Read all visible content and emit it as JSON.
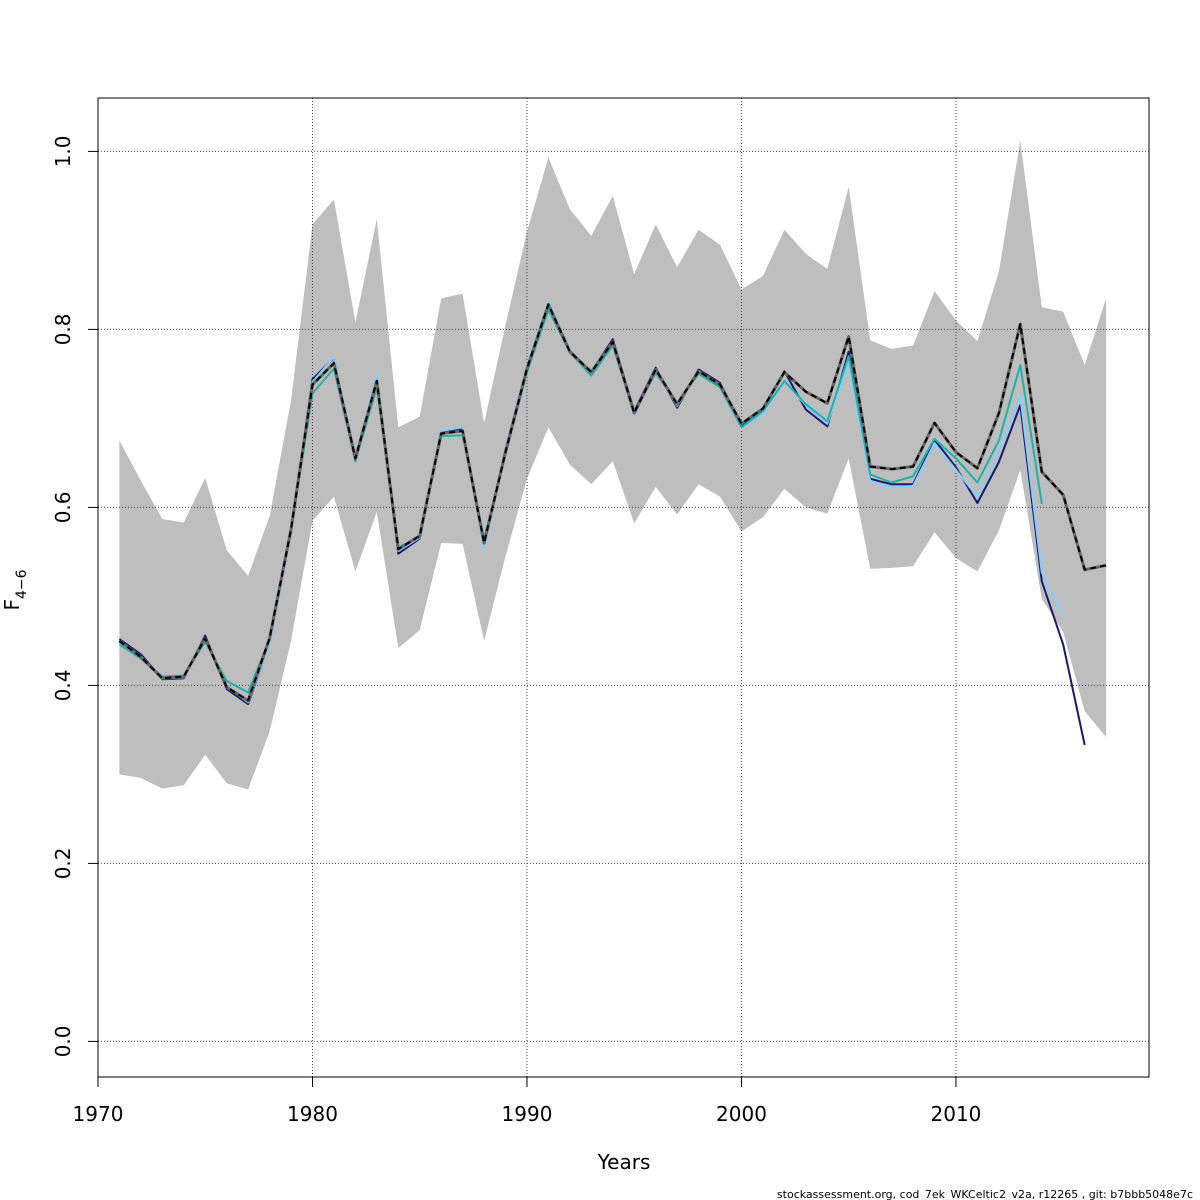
{
  "chart_data": {
    "type": "line",
    "xlabel": "Years",
    "ylabel": {
      "main": "F",
      "sub": "4−6"
    },
    "xlim": [
      1970,
      2019
    ],
    "ylim": [
      -0.04,
      1.06
    ],
    "x_ticks": [
      1970,
      1980,
      1990,
      2000,
      2010
    ],
    "y_ticks": [
      0.0,
      0.2,
      0.4,
      0.6,
      0.8,
      1.0
    ],
    "y_tick_labels": [
      "0.0",
      "0.2",
      "0.4",
      "0.6",
      "0.8",
      "1.0"
    ],
    "grid": true,
    "footer": "stockassessment.org, cod_7ek_WKCeltic2_v2a, r12265 , git: b7bbb5048e7c",
    "band": {
      "color": "#bebebe",
      "x": [
        1971,
        1972,
        1973,
        1974,
        1975,
        1976,
        1977,
        1978,
        1979,
        1980,
        1981,
        1982,
        1983,
        1984,
        1985,
        1986,
        1987,
        1988,
        1989,
        1990,
        1991,
        1992,
        1993,
        1994,
        1995,
        1996,
        1997,
        1998,
        1999,
        2000,
        2001,
        2002,
        2003,
        2004,
        2005,
        2006,
        2007,
        2008,
        2009,
        2010,
        2011,
        2012,
        2013,
        2014,
        2015,
        2016,
        2017
      ],
      "upper": [
        0.675,
        0.63,
        0.587,
        0.583,
        0.633,
        0.552,
        0.523,
        0.59,
        0.72,
        0.918,
        0.946,
        0.808,
        0.924,
        0.69,
        0.702,
        0.835,
        0.84,
        0.695,
        0.805,
        0.91,
        0.993,
        0.935,
        0.905,
        0.95,
        0.862,
        0.918,
        0.87,
        0.912,
        0.895,
        0.845,
        0.86,
        0.912,
        0.885,
        0.868,
        0.96,
        0.788,
        0.778,
        0.782,
        0.843,
        0.81,
        0.787,
        0.865,
        1.012,
        0.825,
        0.82,
        0.76,
        0.835
      ],
      "lower": [
        0.3,
        0.296,
        0.284,
        0.288,
        0.322,
        0.29,
        0.283,
        0.348,
        0.45,
        0.585,
        0.612,
        0.528,
        0.595,
        0.442,
        0.462,
        0.56,
        0.559,
        0.45,
        0.545,
        0.632,
        0.69,
        0.648,
        0.626,
        0.652,
        0.582,
        0.623,
        0.592,
        0.626,
        0.612,
        0.573,
        0.589,
        0.621,
        0.6,
        0.593,
        0.655,
        0.531,
        0.532,
        0.534,
        0.572,
        0.543,
        0.528,
        0.574,
        0.642,
        0.497,
        0.46,
        0.371,
        0.342
      ]
    },
    "series": [
      {
        "color": "#000000",
        "dashed": true,
        "x": [
          1971,
          1972,
          1973,
          1974,
          1975,
          1976,
          1977,
          1978,
          1979,
          1980,
          1981,
          1982,
          1983,
          1984,
          1985,
          1986,
          1987,
          1988,
          1989,
          1990,
          1991,
          1992,
          1993,
          1994,
          1995,
          1996,
          1997,
          1998,
          1999,
          2000,
          2001,
          2002,
          2003,
          2004,
          2005,
          2006,
          2007,
          2008,
          2009,
          2010,
          2011,
          2012,
          2013,
          2014,
          2015,
          2016,
          2017
        ],
        "values": [
          0.45,
          0.432,
          0.408,
          0.41,
          0.453,
          0.398,
          0.383,
          0.453,
          0.575,
          0.738,
          0.762,
          0.655,
          0.742,
          0.553,
          0.568,
          0.683,
          0.686,
          0.56,
          0.662,
          0.756,
          0.828,
          0.775,
          0.752,
          0.786,
          0.706,
          0.755,
          0.716,
          0.753,
          0.738,
          0.694,
          0.711,
          0.752,
          0.73,
          0.717,
          0.792,
          0.646,
          0.643,
          0.646,
          0.695,
          0.662,
          0.644,
          0.706,
          0.806,
          0.64,
          0.614,
          0.53,
          0.535
        ]
      },
      {
        "color": "#191970",
        "dashed": false,
        "x": [
          1971,
          1972,
          1973,
          1974,
          1975,
          1976,
          1977,
          1978,
          1979,
          1980,
          1981,
          1982,
          1983,
          1984,
          1985,
          1986,
          1987,
          1988,
          1989,
          1990,
          1991,
          1992,
          1993,
          1994,
          1995,
          1996,
          1997,
          1998,
          1999,
          2000,
          2001,
          2002,
          2003,
          2004,
          2005,
          2006,
          2007,
          2008,
          2009,
          2010,
          2011,
          2012,
          2013,
          2014,
          2015,
          2016
        ],
        "values": [
          0.452,
          0.435,
          0.407,
          0.408,
          0.456,
          0.396,
          0.379,
          0.449,
          0.572,
          0.744,
          0.768,
          0.652,
          0.748,
          0.548,
          0.565,
          0.685,
          0.688,
          0.557,
          0.665,
          0.757,
          0.83,
          0.776,
          0.752,
          0.789,
          0.708,
          0.757,
          0.712,
          0.755,
          0.74,
          0.692,
          0.709,
          0.753,
          0.71,
          0.691,
          0.775,
          0.632,
          0.626,
          0.626,
          0.676,
          0.645,
          0.605,
          0.651,
          0.715,
          0.517,
          0.446,
          0.333
        ]
      },
      {
        "color": "#87cefa",
        "dashed": false,
        "x": [
          1971,
          1972,
          1973,
          1974,
          1975,
          1976,
          1977,
          1978,
          1979,
          1980,
          1981,
          1982,
          1983,
          1984,
          1985,
          1986,
          1987,
          1988,
          1989,
          1990,
          1991,
          1992,
          1993,
          1994,
          1995,
          1996,
          1997,
          1998,
          1999,
          2000,
          2001,
          2002,
          2003,
          2004,
          2005,
          2006,
          2007,
          2008,
          2009,
          2010,
          2011,
          2012,
          2013,
          2014,
          2015
        ],
        "values": [
          0.449,
          0.431,
          0.408,
          0.409,
          0.452,
          0.399,
          0.381,
          0.448,
          0.571,
          0.741,
          0.769,
          0.654,
          0.75,
          0.551,
          0.566,
          0.686,
          0.69,
          0.553,
          0.664,
          0.758,
          0.832,
          0.776,
          0.75,
          0.785,
          0.703,
          0.755,
          0.714,
          0.752,
          0.737,
          0.689,
          0.705,
          0.741,
          0.715,
          0.694,
          0.762,
          0.63,
          0.622,
          0.624,
          0.672,
          0.642,
          0.612,
          0.663,
          0.725,
          0.527,
          0.478
        ]
      },
      {
        "color": "#20b2aa",
        "dashed": false,
        "x": [
          1971,
          1972,
          1973,
          1974,
          1975,
          1976,
          1977,
          1978,
          1979,
          1980,
          1981,
          1982,
          1983,
          1984,
          1985,
          1986,
          1987,
          1988,
          1989,
          1990,
          1991,
          1992,
          1993,
          1994,
          1995,
          1996,
          1997,
          1998,
          1999,
          2000,
          2001,
          2002,
          2003,
          2004,
          2005,
          2006,
          2007,
          2008,
          2009,
          2010,
          2011,
          2012,
          2013,
          2014
        ],
        "values": [
          0.446,
          0.43,
          0.41,
          0.411,
          0.449,
          0.405,
          0.392,
          0.452,
          0.574,
          0.728,
          0.756,
          0.652,
          0.735,
          0.555,
          0.567,
          0.68,
          0.681,
          0.565,
          0.66,
          0.752,
          0.822,
          0.774,
          0.748,
          0.782,
          0.707,
          0.751,
          0.717,
          0.75,
          0.735,
          0.69,
          0.708,
          0.742,
          0.716,
          0.697,
          0.77,
          0.637,
          0.628,
          0.635,
          0.677,
          0.655,
          0.628,
          0.675,
          0.76,
          0.604
        ]
      }
    ]
  }
}
